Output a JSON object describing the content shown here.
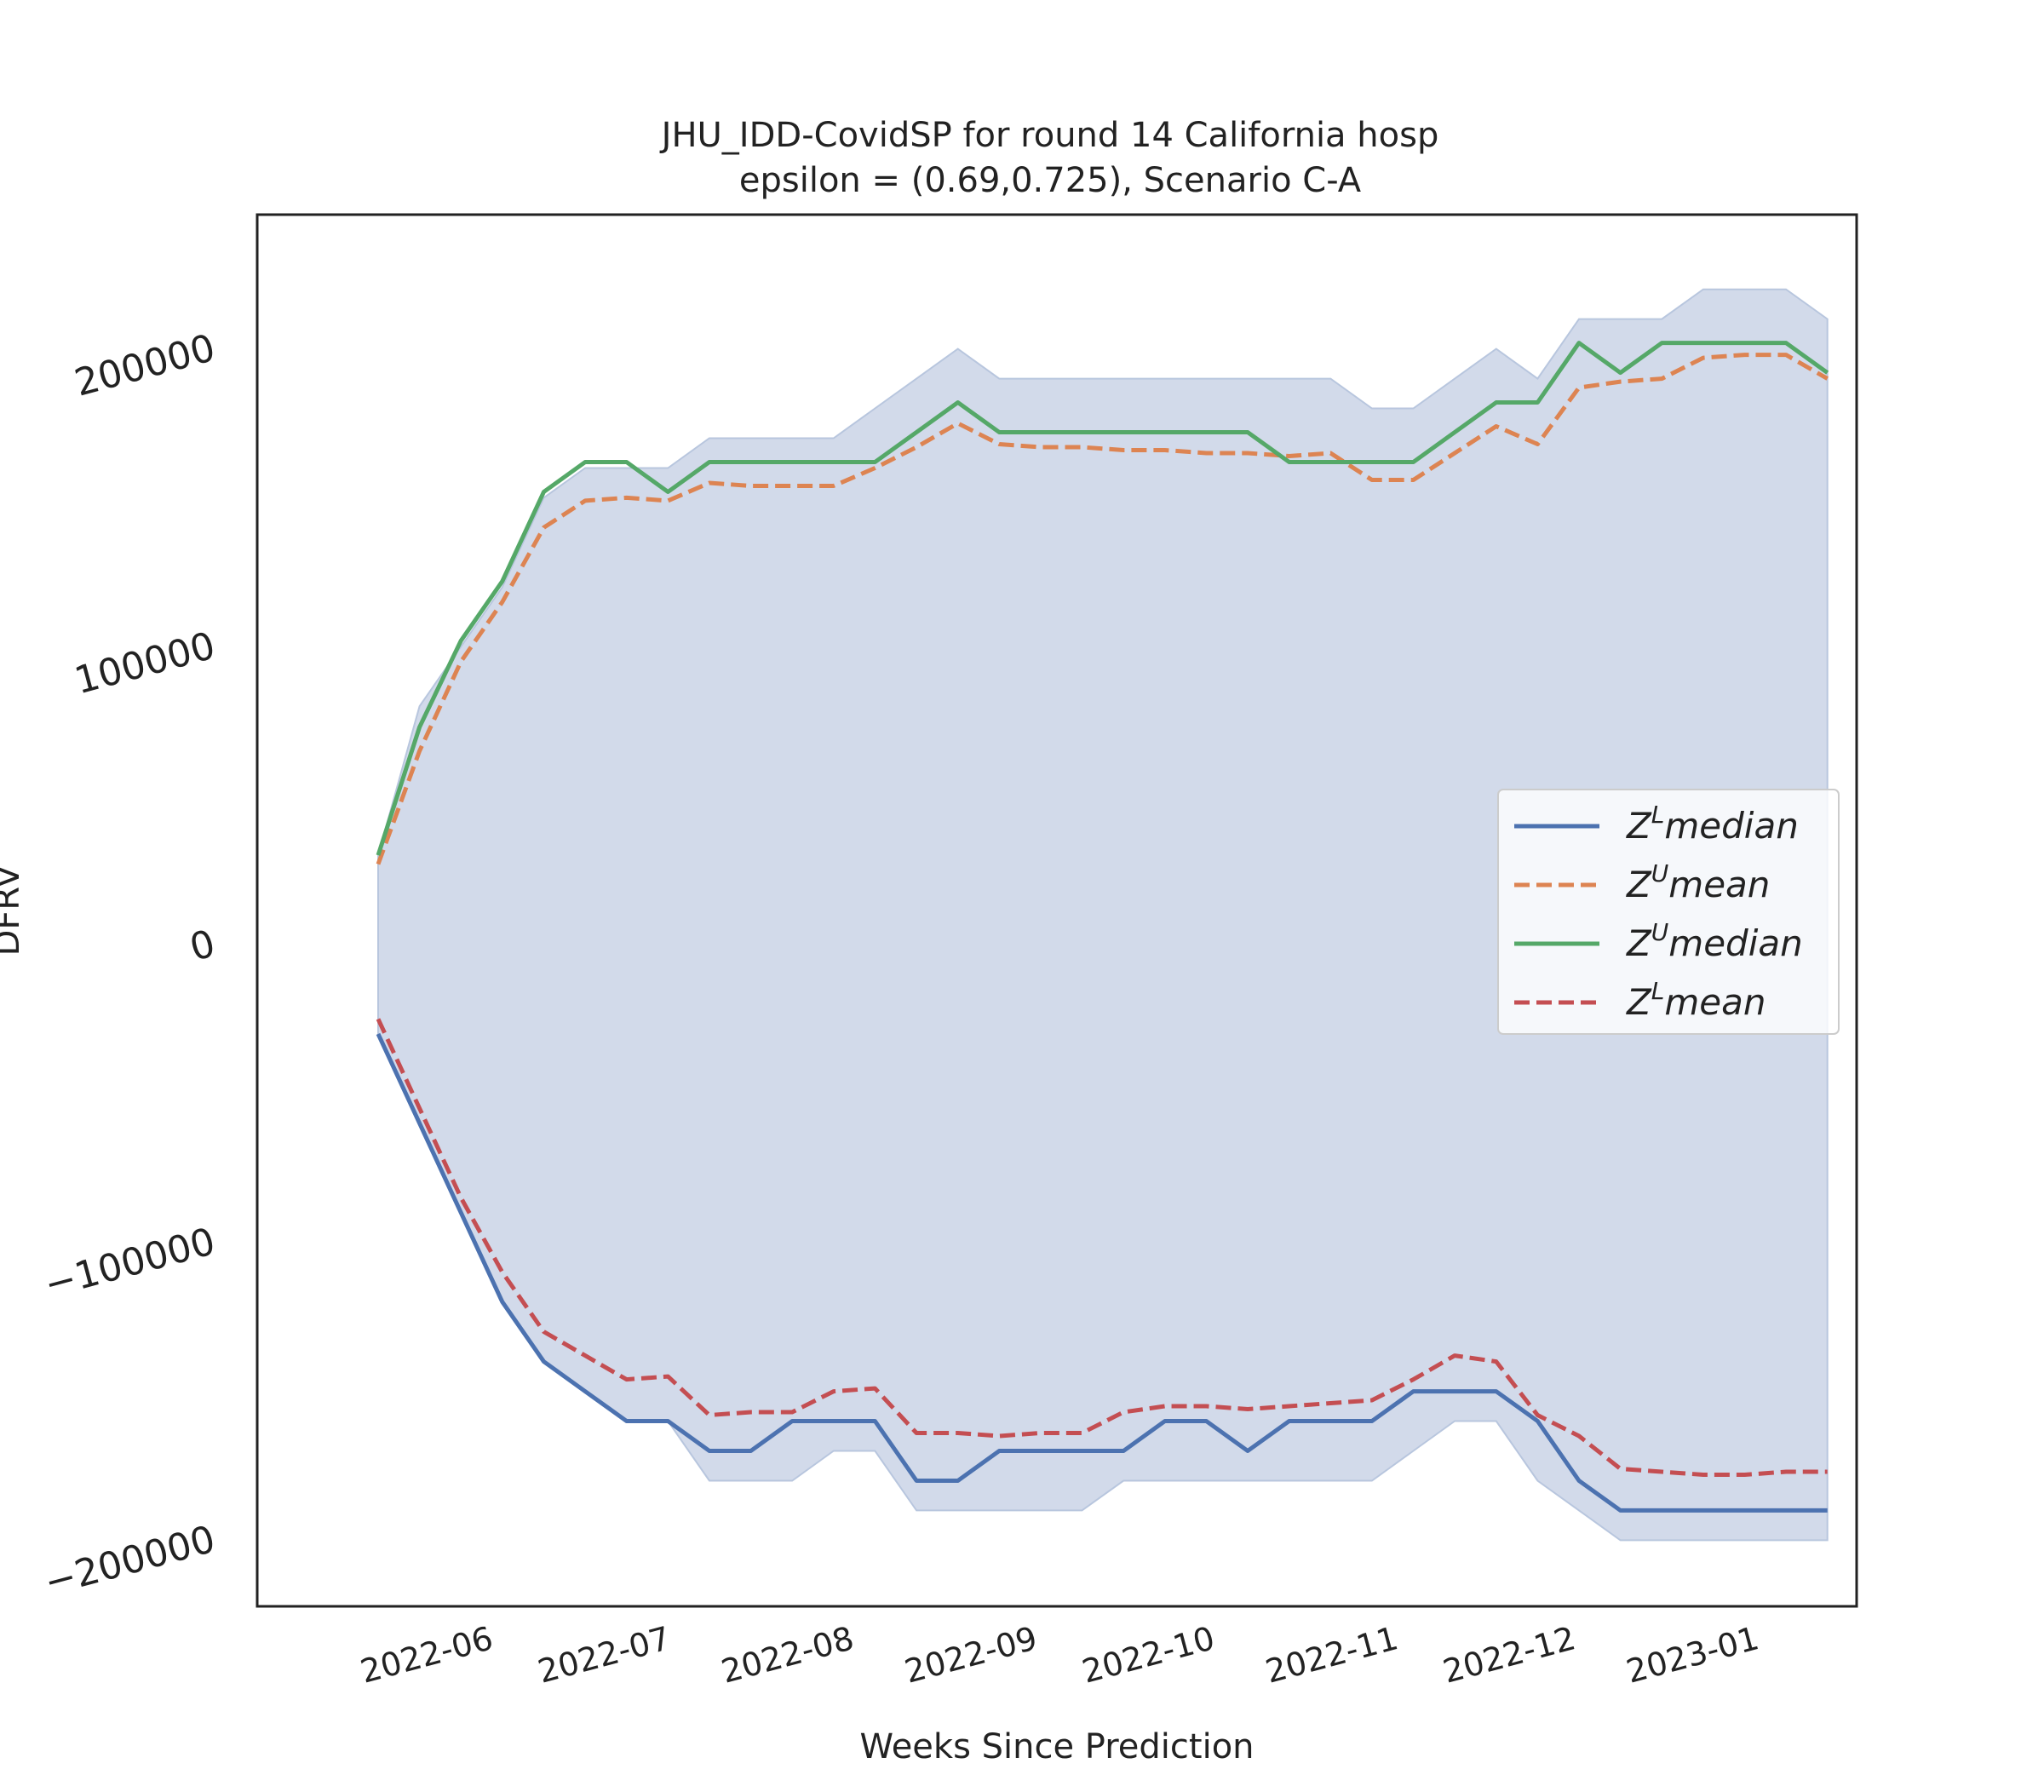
{
  "chart_data": {
    "type": "line",
    "title_line1": "JHU_IDD-CovidSP for round 14 California  hosp",
    "title_line2": "epsilon = (0.69,0.725), Scenario C-A",
    "xlabel": "Weeks Since Prediction",
    "ylabel": "DFRV",
    "ylim": [
      -220000,
      240000
    ],
    "x_tick_labels": [
      "2022-06",
      "2022-07",
      "2022-08",
      "2022-09",
      "2022-10",
      "2022-11",
      "2022-12",
      "2023-01"
    ],
    "y_ticks": [
      -200000,
      -100000,
      0,
      100000,
      200000
    ],
    "y_tick_labels": [
      "−200000",
      "−100000",
      "0",
      "100000",
      "200000"
    ],
    "grid": false,
    "legend_position": "center-right",
    "band_color": "#d2daea",
    "band_edge_color": "#b8c6de",
    "x": [
      "2022-05-14",
      "2022-05-21",
      "2022-05-28",
      "2022-06-04",
      "2022-06-11",
      "2022-06-18",
      "2022-06-25",
      "2022-07-02",
      "2022-07-09",
      "2022-07-16",
      "2022-07-23",
      "2022-07-30",
      "2022-08-06",
      "2022-08-13",
      "2022-08-20",
      "2022-08-27",
      "2022-09-03",
      "2022-09-10",
      "2022-09-17",
      "2022-09-24",
      "2022-10-01",
      "2022-10-08",
      "2022-10-15",
      "2022-10-22",
      "2022-10-29",
      "2022-11-05",
      "2022-11-12",
      "2022-11-19",
      "2022-11-26",
      "2022-12-03",
      "2022-12-10",
      "2022-12-17",
      "2022-12-24",
      "2022-12-31",
      "2023-01-07",
      "2023-01-14"
    ],
    "band_upper": [
      30000,
      80000,
      100000,
      120000,
      150000,
      160000,
      160000,
      160000,
      170000,
      170000,
      170000,
      170000,
      180000,
      190000,
      200000,
      190000,
      190000,
      190000,
      190000,
      190000,
      190000,
      190000,
      190000,
      190000,
      180000,
      180000,
      190000,
      200000,
      190000,
      210000,
      210000,
      210000,
      220000,
      220000,
      220000,
      210000
    ],
    "band_lower": [
      -30000,
      -60000,
      -90000,
      -120000,
      -140000,
      -150000,
      -160000,
      -160000,
      -180000,
      -180000,
      -180000,
      -170000,
      -170000,
      -190000,
      -190000,
      -190000,
      -190000,
      -190000,
      -180000,
      -180000,
      -180000,
      -180000,
      -180000,
      -180000,
      -180000,
      -170000,
      -160000,
      -160000,
      -180000,
      -190000,
      -200000,
      -200000,
      -200000,
      -200000,
      -200000,
      -200000
    ],
    "series": [
      {
        "name": "$Z^Lmedian$",
        "legend_main": "Z",
        "legend_sup": "L",
        "legend_rest": "median",
        "color": "#4c72b0",
        "dash": "solid",
        "values": [
          -30000,
          -60000,
          -90000,
          -120000,
          -140000,
          -150000,
          -160000,
          -160000,
          -170000,
          -170000,
          -160000,
          -160000,
          -160000,
          -180000,
          -180000,
          -170000,
          -170000,
          -170000,
          -170000,
          -160000,
          -160000,
          -170000,
          -160000,
          -160000,
          -160000,
          -150000,
          -150000,
          -150000,
          -160000,
          -180000,
          -190000,
          -190000,
          -190000,
          -190000,
          -190000,
          -190000
        ]
      },
      {
        "name": "$Z^Umean$",
        "legend_main": "Z",
        "legend_sup": "U",
        "legend_rest": "mean",
        "color": "#dd8452",
        "dash": "dashed",
        "values": [
          27000,
          65000,
          95000,
          115000,
          140000,
          149000,
          150000,
          149000,
          155000,
          154000,
          154000,
          154000,
          160000,
          167000,
          175000,
          168000,
          167000,
          167000,
          166000,
          166000,
          165000,
          165000,
          164000,
          165000,
          156000,
          156000,
          165000,
          174000,
          168000,
          187000,
          189000,
          190000,
          197000,
          198000,
          198000,
          190000
        ]
      },
      {
        "name": "$Z^Umedian$",
        "legend_main": "Z",
        "legend_sup": "U",
        "legend_rest": "median",
        "color": "#55a868",
        "dash": "solid",
        "values": [
          30000,
          73000,
          102000,
          122000,
          152000,
          162000,
          162000,
          152000,
          162000,
          162000,
          162000,
          162000,
          162000,
          172000,
          182000,
          172000,
          172000,
          172000,
          172000,
          172000,
          172000,
          172000,
          162000,
          162000,
          162000,
          162000,
          172000,
          182000,
          182000,
          202000,
          192000,
          202000,
          202000,
          202000,
          202000,
          192000
        ]
      },
      {
        "name": "$Z^Lmean$",
        "legend_main": "Z",
        "legend_sup": "L",
        "legend_rest": "mean",
        "color": "#c44e52",
        "dash": "dashed",
        "values": [
          -25000,
          -55000,
          -85000,
          -110000,
          -130000,
          -138000,
          -146000,
          -145000,
          -158000,
          -157000,
          -157000,
          -150000,
          -149000,
          -164000,
          -164000,
          -165000,
          -164000,
          -164000,
          -157000,
          -155000,
          -155000,
          -156000,
          -155000,
          -154000,
          -153000,
          -146000,
          -138000,
          -140000,
          -158000,
          -165000,
          -176000,
          -177000,
          -178000,
          -178000,
          -177000,
          -177000
        ]
      }
    ]
  }
}
